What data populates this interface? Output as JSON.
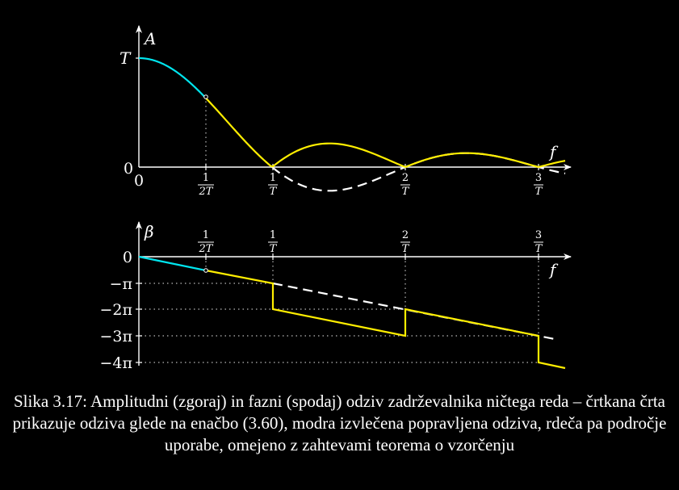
{
  "colors": {
    "background": "#000000",
    "axis": "#ffffff",
    "cyan": "#00e5ee",
    "yellow": "#ffee00",
    "dashed": "#ffffff",
    "dotted": "#bbbbbb"
  },
  "top_plot": {
    "y_axis_label": "A",
    "x_axis_label": "f",
    "y_tick_T": "T",
    "y_tick_0": "0",
    "x_origin": "0",
    "freq_ticks": [
      {
        "num": "1",
        "den": "2T",
        "value": 0.5
      },
      {
        "num": "1",
        "den": "T",
        "value": 1
      },
      {
        "num": "2",
        "den": "T",
        "value": 2
      },
      {
        "num": "3",
        "den": "T",
        "value": 3
      }
    ]
  },
  "bottom_plot": {
    "y_axis_label": "β",
    "x_axis_label": "f",
    "y_ticks": [
      {
        "label": "0",
        "value": 0
      },
      {
        "label": "−π",
        "value": -1
      },
      {
        "label": "−2π",
        "value": -2
      },
      {
        "label": "−3π",
        "value": -3
      },
      {
        "label": "−4π",
        "value": -4
      }
    ],
    "freq_ticks": [
      {
        "num": "1",
        "den": "2T",
        "value": 0.5
      },
      {
        "num": "1",
        "den": "T",
        "value": 1
      },
      {
        "num": "2",
        "den": "T",
        "value": 2
      },
      {
        "num": "3",
        "den": "T",
        "value": 3
      }
    ]
  },
  "caption": "Slika 3.17: Amplitudni (zgoraj) in fazni (spodaj) odziv zadrževalnika ničtega reda – črtkana črta prikazuje odziva glede na enačbo (3.60), modra izvlečena popravljena odziva, rdeča pa področje uporabe, omejeno z zahtevami teorema o vzorčenju"
}
